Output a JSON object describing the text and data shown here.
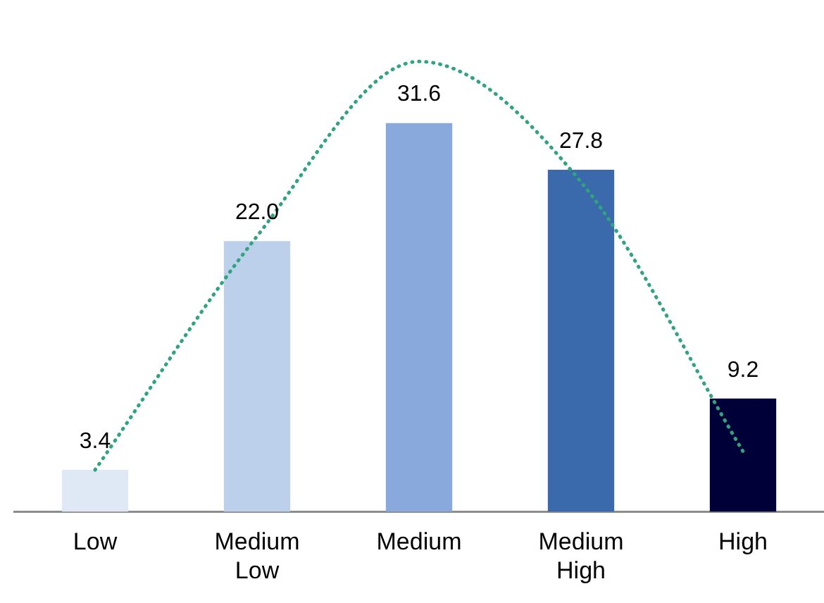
{
  "chart_data": {
    "type": "bar",
    "categories": [
      "Low",
      "Medium Low",
      "Medium",
      "Medium High",
      "High"
    ],
    "grid": false,
    "legend": false,
    "series": [
      {
        "colors": [
          "#dfe8f5",
          "#bcd0ec",
          "#89a9dd",
          "#3a6aab",
          "#000039"
        ],
        "values": [
          3.4,
          22.0,
          31.6,
          27.8,
          9.2
        ],
        "value_labels": [
          "3.4",
          "22.0",
          "31.6",
          "27.8",
          "9.2"
        ]
      },
      {
        "type": "line",
        "color": "#2ea57a",
        "marker": "none",
        "line_style": "dotted",
        "values": [
          3.4,
          22.4,
          36.6,
          26.8,
          4.9
        ]
      }
    ]
  }
}
